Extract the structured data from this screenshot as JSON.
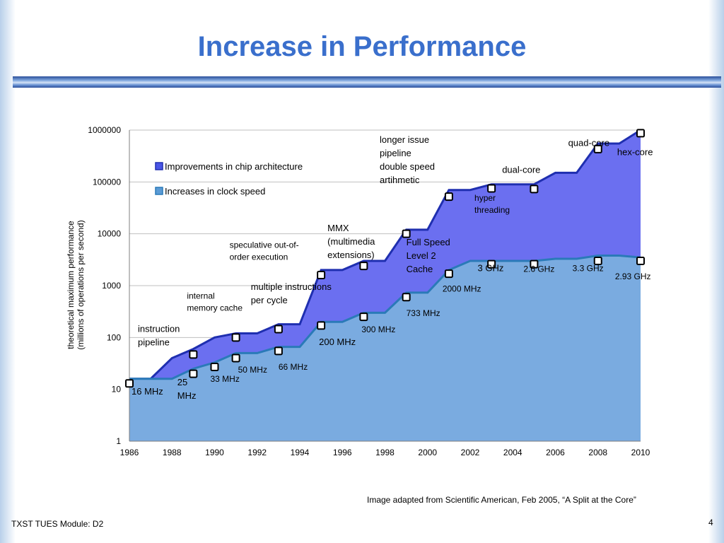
{
  "slide": {
    "title": "Increase in Performance",
    "footer": "TXST TUES Module: D2",
    "page_number": "4",
    "source": "Image adapted from Scientific American, Feb 2005, “A Split at the Core”"
  },
  "chart_data": {
    "type": "area",
    "ylabel_line1": "theoretical maximum performance",
    "ylabel_line2": "(millions of operations per second)",
    "y_scale": "log",
    "ylim": [
      1,
      1000000
    ],
    "y_ticks": [
      "1",
      "10",
      "100",
      "1000",
      "10000",
      "100000",
      "1000000"
    ],
    "xlim": [
      1986,
      2010
    ],
    "x_ticks": [
      "1986",
      "1988",
      "1990",
      "1992",
      "1994",
      "1996",
      "1998",
      "2000",
      "2002",
      "2004",
      "2006",
      "2008",
      "2010"
    ],
    "grid": true,
    "legend_position": "top-left",
    "series": [
      {
        "name": "Improvements in chip architecture",
        "color": "#6b6ff0",
        "stroke": "#1f2fb0",
        "x": [
          1986,
          1987,
          1988,
          1989,
          1990,
          1991,
          1992,
          1993,
          1994,
          1995,
          1996,
          1997,
          1998,
          1999,
          2000,
          2001,
          2002,
          2003,
          2004,
          2005,
          2006,
          2007,
          2008,
          2009,
          2010
        ],
        "values": [
          16,
          16,
          40,
          60,
          100,
          120,
          120,
          180,
          180,
          2000,
          2000,
          3000,
          3000,
          12000,
          12000,
          70000,
          70000,
          90000,
          90000,
          90000,
          150000,
          150000,
          550000,
          550000,
          1000000
        ]
      },
      {
        "name": "Increases in clock speed",
        "color": "#7aabe0",
        "stroke": "#2a7ab8",
        "x": [
          1986,
          1987,
          1988,
          1989,
          1990,
          1991,
          1992,
          1993,
          1994,
          1995,
          1996,
          1997,
          1998,
          1999,
          2000,
          2001,
          2002,
          2003,
          2004,
          2005,
          2006,
          2007,
          2008,
          2009,
          2010
        ],
        "values": [
          16,
          16,
          16,
          25,
          33,
          50,
          50,
          66,
          66,
          200,
          200,
          300,
          300,
          733,
          733,
          2000,
          3000,
          3000,
          3000,
          3000,
          3300,
          3300,
          3800,
          3800,
          3500
        ]
      }
    ],
    "markers": [
      {
        "x": 1986,
        "y": 13
      },
      {
        "x": 1989,
        "y": 20
      },
      {
        "x": 1989,
        "y": 47
      },
      {
        "x": 1990,
        "y": 27
      },
      {
        "x": 1991,
        "y": 40
      },
      {
        "x": 1991,
        "y": 100
      },
      {
        "x": 1993,
        "y": 55
      },
      {
        "x": 1993,
        "y": 145
      },
      {
        "x": 1995,
        "y": 170
      },
      {
        "x": 1995,
        "y": 1600
      },
      {
        "x": 1997,
        "y": 250
      },
      {
        "x": 1997,
        "y": 2400
      },
      {
        "x": 1999,
        "y": 600
      },
      {
        "x": 1999,
        "y": 10000
      },
      {
        "x": 2001,
        "y": 1700
      },
      {
        "x": 2001,
        "y": 52000
      },
      {
        "x": 2003,
        "y": 2600
      },
      {
        "x": 2003,
        "y": 75000
      },
      {
        "x": 2005,
        "y": 2600
      },
      {
        "x": 2005,
        "y": 73000
      },
      {
        "x": 2008,
        "y": 3000
      },
      {
        "x": 2008,
        "y": 430000
      },
      {
        "x": 2010,
        "y": 3000
      },
      {
        "x": 2010,
        "y": 870000
      }
    ],
    "annotations": [
      {
        "lines": [
          "instruction",
          "pipeline"
        ],
        "x": 1986.4,
        "y": 128,
        "size": "m"
      },
      {
        "lines": [
          "16 MHz"
        ],
        "x": 1986.1,
        "y": 8,
        "size": "m"
      },
      {
        "lines": [
          "25",
          "MHz"
        ],
        "x": 1988.25,
        "y": 12,
        "size": "m"
      },
      {
        "lines": [
          "33 MHz"
        ],
        "x": 1989.8,
        "y": 14,
        "size": "s"
      },
      {
        "lines": [
          "50 MHz"
        ],
        "x": 1991.1,
        "y": 21,
        "size": "s"
      },
      {
        "lines": [
          "66 MHz"
        ],
        "x": 1993,
        "y": 24,
        "size": "s"
      },
      {
        "lines": [
          "internal",
          "memory cache"
        ],
        "x": 1988.7,
        "y": 560,
        "size": "s"
      },
      {
        "lines": [
          "multiple instructions",
          "per cycle"
        ],
        "x": 1991.7,
        "y": 830,
        "size": "m"
      },
      {
        "lines": [
          "speculative out-of-",
          "order execution"
        ],
        "x": 1990.7,
        "y": 5400,
        "size": "s"
      },
      {
        "lines": [
          "MMX",
          "(multimedia",
          "extensions)"
        ],
        "x": 1995.3,
        "y": 11200,
        "size": "m"
      },
      {
        "lines": [
          "200 MHz"
        ],
        "x": 1994.9,
        "y": 72,
        "size": "m"
      },
      {
        "lines": [
          "300 MHz"
        ],
        "x": 1996.9,
        "y": 125,
        "size": "s"
      },
      {
        "lines": [
          "733 MHz"
        ],
        "x": 1999,
        "y": 260,
        "size": "s"
      },
      {
        "lines": [
          "2000 MHz"
        ],
        "x": 2000.7,
        "y": 770,
        "size": "s"
      },
      {
        "lines": [
          "Full Speed",
          "Level 2",
          "Cache"
        ],
        "x": 1999,
        "y": 6000,
        "size": "m"
      },
      {
        "lines": [
          "3 GHz"
        ],
        "x": 2002.35,
        "y": 1900,
        "size": "m"
      },
      {
        "lines": [
          "2.6 GHz"
        ],
        "x": 2004.5,
        "y": 1850,
        "size": "s"
      },
      {
        "lines": [
          "3.3 GHz"
        ],
        "x": 2006.8,
        "y": 1900,
        "size": "s"
      },
      {
        "lines": [
          "2.93 GHz"
        ],
        "x": 2008.8,
        "y": 1320,
        "size": "s"
      },
      {
        "lines": [
          "hyper",
          "threading"
        ],
        "x": 2002.2,
        "y": 43000,
        "size": "s"
      },
      {
        "lines": [
          "longer issue",
          "pipeline",
          "double speed",
          "artihmetic"
        ],
        "x": 1997.75,
        "y": 570000,
        "size": "m"
      },
      {
        "lines": [
          "dual-core"
        ],
        "x": 2003.5,
        "y": 150000,
        "size": "m"
      },
      {
        "lines": [
          "quad-core"
        ],
        "x": 2006.6,
        "y": 490000,
        "size": "m"
      },
      {
        "lines": [
          "hex-core"
        ],
        "x": 2008.9,
        "y": 330000,
        "size": "m"
      }
    ]
  }
}
